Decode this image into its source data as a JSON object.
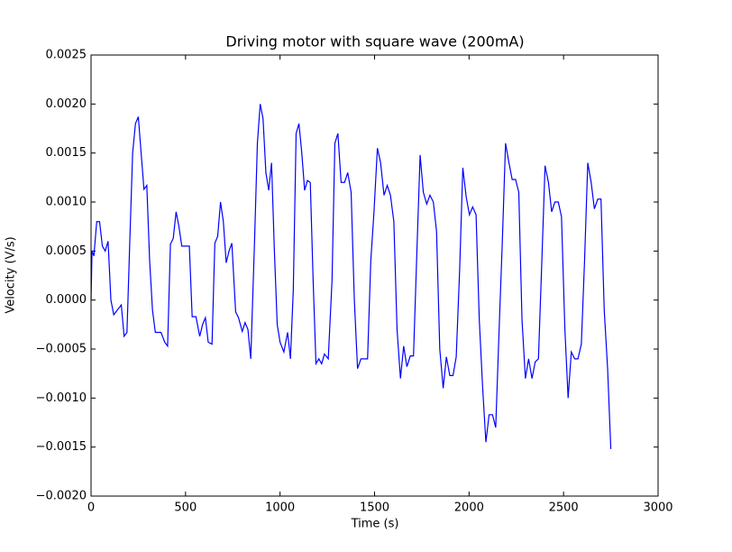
{
  "chart_data": {
    "type": "line",
    "title": "Driving motor with square wave (200mA)",
    "xlabel": "Time (s)",
    "ylabel": "Velocity (V/s)",
    "color": "#0000ff",
    "xlim": [
      0,
      3000
    ],
    "ylim": [
      -0.002,
      0.0025
    ],
    "xticks": [
      0,
      500,
      1000,
      1500,
      2000,
      2500,
      3000
    ],
    "yticks": [
      {
        "value": -0.002,
        "label": "−0.0020"
      },
      {
        "value": -0.0015,
        "label": "−0.0015"
      },
      {
        "value": -0.001,
        "label": "−0.0010"
      },
      {
        "value": -0.0005,
        "label": "−0.0005"
      },
      {
        "value": 0,
        "label": "0.0000"
      },
      {
        "value": 0.0005,
        "label": "0.0005"
      },
      {
        "value": 0.001,
        "label": "0.0010"
      },
      {
        "value": 0.0015,
        "label": "0.0015"
      },
      {
        "value": 0.002,
        "label": "0.0020"
      },
      {
        "value": 0.0025,
        "label": "0.0025"
      }
    ],
    "x": [
      0,
      5,
      15,
      30,
      45,
      60,
      75,
      90,
      105,
      120,
      140,
      160,
      175,
      190,
      205,
      220,
      235,
      250,
      265,
      280,
      295,
      310,
      325,
      340,
      370,
      390,
      405,
      420,
      435,
      450,
      465,
      480,
      520,
      535,
      555,
      575,
      590,
      605,
      620,
      640,
      655,
      670,
      685,
      700,
      715,
      730,
      745,
      765,
      780,
      800,
      815,
      830,
      845,
      865,
      880,
      895,
      910,
      925,
      940,
      955,
      970,
      985,
      1000,
      1020,
      1040,
      1055,
      1070,
      1085,
      1100,
      1115,
      1130,
      1145,
      1160,
      1175,
      1190,
      1205,
      1220,
      1235,
      1255,
      1275,
      1290,
      1306,
      1323,
      1341,
      1358,
      1376,
      1393,
      1410,
      1428,
      1445,
      1463,
      1480,
      1497,
      1515,
      1532,
      1550,
      1567,
      1584,
      1602,
      1619,
      1637,
      1654,
      1671,
      1689,
      1706,
      1724,
      1741,
      1758,
      1776,
      1793,
      1811,
      1828,
      1845,
      1863,
      1880,
      1898,
      1915,
      1932,
      1950,
      1967,
      1985,
      2002,
      2019,
      2037,
      2054,
      2072,
      2089,
      2106,
      2124,
      2141,
      2159,
      2176,
      2193,
      2211,
      2228,
      2246,
      2263,
      2280,
      2298,
      2315,
      2333,
      2350,
      2367,
      2385,
      2402,
      2420,
      2437,
      2454,
      2472,
      2489,
      2507,
      2524,
      2541,
      2559,
      2576,
      2594,
      2611,
      2628,
      2646,
      2663,
      2681,
      2698,
      2715,
      2733,
      2750
    ],
    "values": [
      0.0,
      0.0005,
      0.00045,
      0.0008,
      0.0008,
      0.00055,
      0.0005,
      0.0006,
      0.0,
      -0.00015,
      -0.0001,
      -5e-05,
      -0.00037,
      -0.00033,
      0.0006,
      0.0015,
      0.0018,
      0.00187,
      0.0015,
      0.00113,
      0.00117,
      0.0004,
      -0.0001,
      -0.00033,
      -0.00033,
      -0.00043,
      -0.00047,
      0.00057,
      0.00063,
      0.0009,
      0.00075,
      0.00055,
      0.00055,
      -0.00017,
      -0.00017,
      -0.00037,
      -0.00025,
      -0.00018,
      -0.00043,
      -0.00045,
      0.00058,
      0.00065,
      0.001,
      0.0008,
      0.00038,
      0.0005,
      0.00058,
      -0.00012,
      -0.00018,
      -0.00032,
      -0.00023,
      -0.0003,
      -0.0006,
      0.0006,
      0.0016,
      0.002,
      0.00185,
      0.0013,
      0.00112,
      0.0014,
      0.0005,
      -0.00025,
      -0.00043,
      -0.00053,
      -0.00033,
      -0.0006,
      0.0001,
      0.0017,
      0.0018,
      0.0015,
      0.00112,
      0.00122,
      0.0012,
      0.0002,
      -0.00065,
      -0.0006,
      -0.00065,
      -0.00055,
      -0.0006,
      0.0002,
      0.0016,
      0.0017,
      0.0012,
      0.0012,
      0.0013,
      0.0011,
      0.0,
      -0.0007,
      -0.0006,
      -0.0006,
      -0.0006,
      0.0004,
      0.0009,
      0.00155,
      0.0014,
      0.00107,
      0.00117,
      0.00107,
      0.0008,
      -0.0003,
      -0.0008,
      -0.00047,
      -0.00068,
      -0.00057,
      -0.00057,
      0.0005,
      0.00148,
      0.0011,
      0.00098,
      0.00107,
      0.001,
      0.0007,
      -0.0005,
      -0.0009,
      -0.00058,
      -0.00077,
      -0.00077,
      -0.00058,
      0.0003,
      0.00135,
      0.00105,
      0.00087,
      0.00095,
      0.00087,
      -0.0002,
      -0.0009,
      -0.00145,
      -0.00117,
      -0.00117,
      -0.0013,
      -0.0003,
      0.0006,
      0.0016,
      0.0014,
      0.00123,
      0.00123,
      0.0011,
      -0.0002,
      -0.0008,
      -0.0006,
      -0.0008,
      -0.00063,
      -0.0006,
      0.0004,
      0.00137,
      0.0012,
      0.0009,
      0.001,
      0.001,
      0.00085,
      -0.0003,
      -0.001,
      -0.00053,
      -0.0006,
      -0.0006,
      -0.00045,
      0.0004,
      0.0014,
      0.0012,
      0.00093,
      0.00103,
      0.00103,
      -0.0001,
      -0.0007,
      -0.00152
    ]
  }
}
